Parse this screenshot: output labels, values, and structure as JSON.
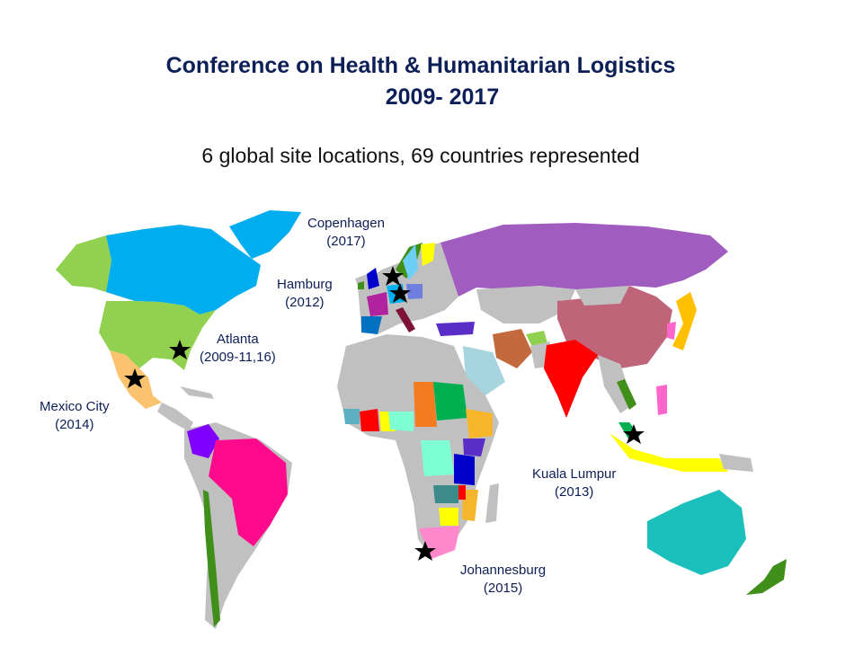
{
  "title_line1": "Conference on Health & Humanitarian Logistics",
  "title_line2": "2009- 2017",
  "subtitle": "6 global site locations, 69 countries represented",
  "sites": [
    {
      "city": "Copenhagen",
      "years": "(2017)"
    },
    {
      "city": "Hamburg",
      "years": "(2012)"
    },
    {
      "city": "Atlanta",
      "years": "(2009-11,16)"
    },
    {
      "city": "Mexico City",
      "years": "(2014)"
    },
    {
      "city": "Kuala Lumpur",
      "years": "(2013)"
    },
    {
      "city": "Johannesburg",
      "years": "(2015)"
    }
  ],
  "colors": {
    "title": "#0d1f57",
    "land_default": "#c0c0c0",
    "canada": "#00aeef",
    "usa": "#92d050",
    "russia": "#a05cbf",
    "china": "#c0647a",
    "india": "#ff0000",
    "brazil": "#ff0a8c",
    "australia": "#1bbfbc",
    "mexico": "#fbc36f"
  }
}
